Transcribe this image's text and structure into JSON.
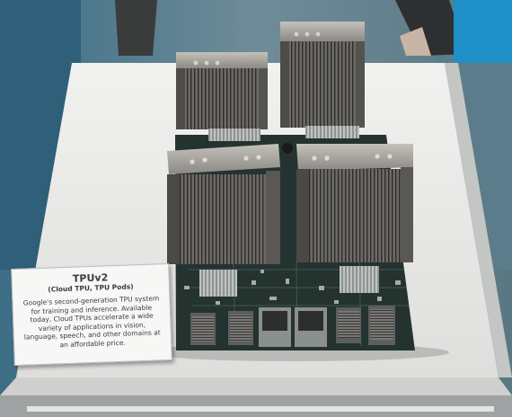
{
  "exhibit": {
    "placard": {
      "title": "TPUv2",
      "subtitle": "(Cloud TPU, TPU Pods)",
      "body": "Google's second-generation TPU system for training and inference. Available today, Cloud TPUs accelerate a wide variety of applications in vision, language, speech, and other domains at an affordable price."
    }
  },
  "colors": {
    "display_case": "#e9e9e6",
    "pcb": "#2b3a36",
    "heatsink": "#8c8a86",
    "floor": "#5d6b74"
  }
}
